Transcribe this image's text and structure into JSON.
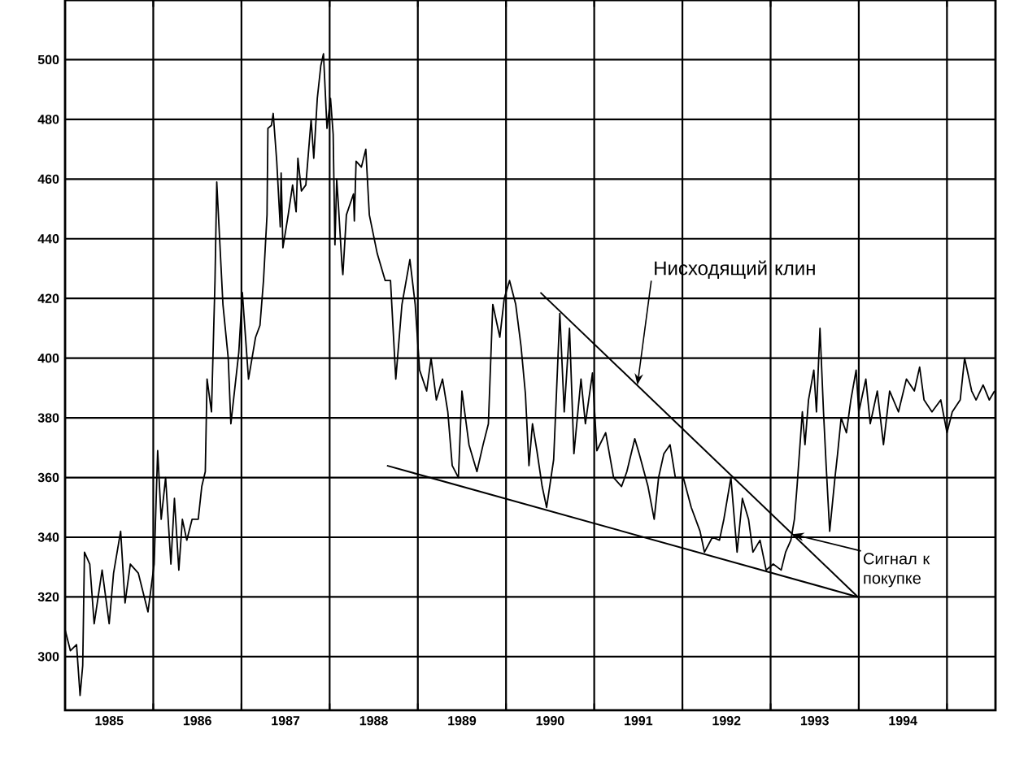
{
  "chart_data": {
    "type": "line",
    "xlim": [
      1985,
      1995.55
    ],
    "ylim": [
      282,
      520
    ],
    "yticks": [
      300,
      320,
      340,
      360,
      380,
      400,
      420,
      440,
      460,
      480,
      500
    ],
    "xticks": [
      {
        "value": 1985.5,
        "label": "1985"
      },
      {
        "value": 1986,
        "label": null
      },
      {
        "value": 1986.5,
        "label": "1986"
      },
      {
        "value": 1987,
        "label": null
      },
      {
        "value": 1987.5,
        "label": "1987"
      },
      {
        "value": 1988,
        "label": null
      },
      {
        "value": 1988.5,
        "label": "1988"
      },
      {
        "value": 1989,
        "label": null
      },
      {
        "value": 1989.5,
        "label": "1989"
      },
      {
        "value": 1990,
        "label": null
      },
      {
        "value": 1990.5,
        "label": "1990"
      },
      {
        "value": 1991,
        "label": null
      },
      {
        "value": 1991.5,
        "label": "1991"
      },
      {
        "value": 1992,
        "label": null
      },
      {
        "value": 1992.5,
        "label": "1992"
      },
      {
        "value": 1993,
        "label": null
      },
      {
        "value": 1993.5,
        "label": "1993"
      },
      {
        "value": 1994,
        "label": null
      },
      {
        "value": 1994.5,
        "label": "1994"
      },
      {
        "value": 1995,
        "label": null
      }
    ],
    "grid": true,
    "marker": "none",
    "line_style": "solid",
    "series": [
      {
        "color": "#000000",
        "x": [
          1985.0,
          1985.06,
          1985.13,
          1985.17,
          1985.2,
          1985.22,
          1985.28,
          1985.33,
          1985.42,
          1985.5,
          1985.55,
          1985.63,
          1985.68,
          1985.74,
          1985.83,
          1985.94,
          1986.01,
          1986.05,
          1986.09,
          1986.14,
          1986.2,
          1986.24,
          1986.29,
          1986.33,
          1986.38,
          1986.44,
          1986.51,
          1986.55,
          1986.59,
          1986.61,
          1986.66,
          1986.7,
          1986.72,
          1986.79,
          1986.85,
          1986.88,
          1986.97,
          1987.01,
          1987.08,
          1987.16,
          1987.21,
          1987.25,
          1987.27,
          1987.29,
          1987.3,
          1987.34,
          1987.36,
          1987.4,
          1987.44,
          1987.45,
          1987.47,
          1987.53,
          1987.58,
          1987.62,
          1987.64,
          1987.68,
          1987.73,
          1987.79,
          1987.82,
          1987.86,
          1987.9,
          1987.93,
          1987.97,
          1988.01,
          1988.04,
          1988.06,
          1988.08,
          1988.1,
          1988.14,
          1988.15,
          1988.19,
          1988.27,
          1988.28,
          1988.3,
          1988.36,
          1988.41,
          1988.45,
          1988.54,
          1988.63,
          1988.69,
          1988.75,
          1988.82,
          1988.91,
          1988.97,
          1989.02,
          1989.1,
          1989.15,
          1989.21,
          1989.28,
          1989.34,
          1989.39,
          1989.46,
          1989.5,
          1989.58,
          1989.67,
          1989.74,
          1989.8,
          1989.85,
          1989.93,
          1989.98,
          1990.04,
          1990.11,
          1990.17,
          1990.22,
          1990.26,
          1990.3,
          1990.35,
          1990.41,
          1990.46,
          1990.54,
          1990.61,
          1990.66,
          1990.72,
          1990.77,
          1990.85,
          1990.9,
          1990.98,
          1991.03,
          1991.13,
          1991.22,
          1991.31,
          1991.37,
          1991.46,
          1991.51,
          1991.61,
          1991.68,
          1991.73,
          1991.79,
          1991.86,
          1991.92,
          1992.01,
          1992.1,
          1992.2,
          1992.25,
          1992.34,
          1992.42,
          1992.47,
          1992.55,
          1992.62,
          1992.68,
          1992.75,
          1992.8,
          1992.88,
          1992.95,
          1993.03,
          1993.12,
          1993.17,
          1993.23,
          1993.27,
          1993.3,
          1993.36,
          1993.39,
          1993.43,
          1993.49,
          1993.52,
          1993.56,
          1993.6,
          1993.63,
          1993.67,
          1993.73,
          1993.76,
          1993.8,
          1993.86,
          1993.91,
          1993.97,
          1994.0,
          1994.08,
          1994.13,
          1994.21,
          1994.28,
          1994.35,
          1994.45,
          1994.54,
          1994.63,
          1994.69,
          1994.74,
          1994.83,
          1994.93,
          1995.0,
          1995.06,
          1995.15,
          1995.2,
          1995.28,
          1995.33,
          1995.41,
          1995.48,
          1995.54
        ],
        "values": [
          309,
          302,
          304,
          287,
          297,
          335,
          331,
          311,
          329,
          311,
          328,
          342,
          318,
          331,
          328,
          315,
          331,
          369,
          346,
          360,
          331,
          353,
          329,
          346,
          339,
          346,
          346,
          357,
          362,
          393,
          382,
          426,
          459,
          418,
          400,
          378,
          402,
          422,
          393,
          407,
          411,
          426,
          437,
          448,
          477,
          478,
          482,
          466,
          444,
          462,
          437,
          448,
          458,
          449,
          467,
          456,
          458,
          480,
          467,
          487,
          498,
          502,
          477,
          487,
          475,
          438,
          460,
          451,
          431,
          428,
          448,
          455,
          446,
          466,
          464,
          470,
          448,
          435,
          426,
          426,
          393,
          418,
          433,
          418,
          396,
          389,
          400,
          386,
          393,
          382,
          364,
          360,
          389,
          371,
          362,
          371,
          378,
          418,
          407,
          420,
          426,
          418,
          404,
          388,
          364,
          378,
          369,
          357,
          350,
          366,
          415,
          382,
          410,
          368,
          393,
          378,
          395,
          369,
          375,
          360,
          357,
          362,
          373,
          368,
          357,
          346,
          360,
          368,
          371,
          360,
          360,
          350,
          342,
          335,
          340,
          339,
          346,
          360,
          335,
          353,
          346,
          335,
          339,
          329,
          331,
          329,
          335,
          339,
          346,
          357,
          382,
          371,
          386,
          396,
          382,
          410,
          382,
          364,
          342,
          360,
          368,
          380,
          375,
          386,
          396,
          382,
          393,
          378,
          389,
          371,
          389,
          382,
          393,
          389,
          397,
          386,
          382,
          386,
          375,
          382,
          386,
          400,
          389,
          386,
          391,
          386,
          389
        ]
      },
      {
        "type": "line",
        "color": "#000000",
        "x": [
          1990.39,
          1993.99
        ],
        "values": [
          422,
          320
        ]
      },
      {
        "type": "line",
        "color": "#000000",
        "x": [
          1988.65,
          1993.99
        ],
        "values": [
          364,
          320
        ]
      }
    ],
    "annotations": [
      {
        "text": "Нисходящий клин",
        "x": 1991.49,
        "y": 391
      },
      {
        "text": "Сигнал к покупке",
        "x": 1993.25,
        "y": 341
      }
    ]
  }
}
